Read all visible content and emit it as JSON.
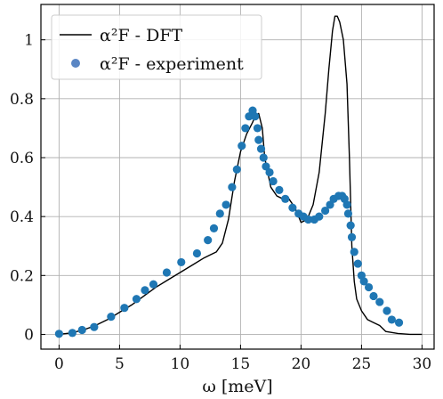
{
  "chart_data": {
    "type": "line",
    "title": "",
    "xlabel": "ω [meV]",
    "ylabel": "",
    "xlim": [
      -1.5,
      31
    ],
    "ylim": [
      -0.05,
      1.12
    ],
    "x_ticks": [
      0,
      5,
      10,
      15,
      20,
      25,
      30
    ],
    "y_ticks": [
      0,
      0.2,
      0.4,
      0.6,
      0.8,
      1
    ],
    "x_tick_labels": [
      "0",
      "5",
      "10",
      "15",
      "20",
      "25",
      "30"
    ],
    "y_tick_labels": [
      "0",
      "0.2",
      "0.4",
      "0.6",
      "0.8",
      "1"
    ],
    "grid": true,
    "legend": {
      "placement": "top-left"
    },
    "colors": {
      "line": "#000000",
      "markers": "#1f77b4",
      "grid": "#b0b0b0"
    },
    "series": [
      {
        "name": "α²F - DFT",
        "kind": "line",
        "x": [
          0,
          1,
          2,
          3,
          4,
          5,
          6,
          7,
          8,
          9,
          10,
          11,
          12,
          12.5,
          13,
          13.5,
          14,
          14.5,
          15,
          15.5,
          16,
          16.2,
          16.5,
          16.8,
          17,
          17.5,
          18,
          18.5,
          19,
          19.5,
          20,
          20.5,
          21,
          21.5,
          22,
          22.3,
          22.6,
          22.8,
          23,
          23.2,
          23.5,
          23.8,
          24,
          24.2,
          24.4,
          24.6,
          25,
          25.5,
          26,
          26.5,
          27,
          28,
          29,
          30
        ],
        "y": [
          0,
          0.005,
          0.015,
          0.03,
          0.05,
          0.075,
          0.1,
          0.13,
          0.16,
          0.185,
          0.21,
          0.235,
          0.26,
          0.27,
          0.28,
          0.31,
          0.39,
          0.52,
          0.62,
          0.68,
          0.72,
          0.74,
          0.75,
          0.7,
          0.6,
          0.5,
          0.47,
          0.46,
          0.46,
          0.43,
          0.38,
          0.39,
          0.44,
          0.55,
          0.75,
          0.9,
          1.03,
          1.08,
          1.08,
          1.06,
          1.0,
          0.85,
          0.6,
          0.3,
          0.18,
          0.12,
          0.08,
          0.05,
          0.04,
          0.03,
          0.01,
          0.003,
          0.0,
          0.0
        ]
      },
      {
        "name": "α²F - experiment",
        "kind": "scatter",
        "x": [
          0,
          1.1,
          1.9,
          2.9,
          4.3,
          5.4,
          6.4,
          7.1,
          7.8,
          8.9,
          10.1,
          11.4,
          12.3,
          12.8,
          13.3,
          13.8,
          14.3,
          14.7,
          15.1,
          15.4,
          15.7,
          16,
          16.2,
          16.4,
          16.5,
          16.7,
          16.9,
          17.1,
          17.4,
          17.7,
          18.2,
          18.7,
          19.3,
          19.8,
          20.2,
          20.6,
          21.1,
          21.5,
          22,
          22.4,
          22.7,
          23.1,
          23.4,
          23.6,
          23.8,
          23.9,
          24.1,
          24.2,
          24.4,
          24.7,
          25,
          25.2,
          25.6,
          26,
          26.5,
          27.1,
          27.5,
          28.1
        ],
        "y": [
          0.002,
          0.005,
          0.015,
          0.025,
          0.06,
          0.09,
          0.12,
          0.15,
          0.17,
          0.21,
          0.245,
          0.275,
          0.32,
          0.36,
          0.41,
          0.44,
          0.5,
          0.56,
          0.64,
          0.7,
          0.74,
          0.76,
          0.74,
          0.7,
          0.66,
          0.63,
          0.6,
          0.57,
          0.55,
          0.52,
          0.49,
          0.46,
          0.43,
          0.41,
          0.4,
          0.39,
          0.39,
          0.4,
          0.42,
          0.44,
          0.46,
          0.47,
          0.47,
          0.46,
          0.44,
          0.41,
          0.37,
          0.33,
          0.28,
          0.24,
          0.2,
          0.18,
          0.16,
          0.13,
          0.11,
          0.08,
          0.05,
          0.04
        ]
      }
    ]
  }
}
